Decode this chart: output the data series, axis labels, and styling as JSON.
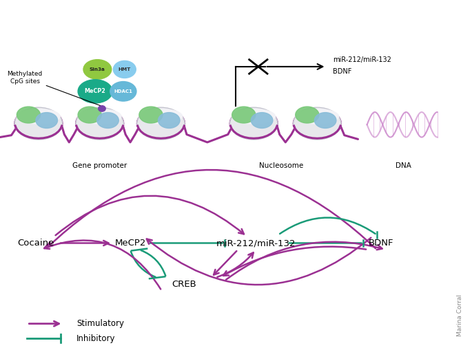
{
  "fig_width": 6.85,
  "fig_height": 5.09,
  "dpi": 100,
  "bg_color": "#ffffff",
  "purple": "#9B3092",
  "teal": "#1A9B78",
  "black": "#111111",
  "gray": "#888888",
  "legend_stimulatory": "Stimulatory",
  "legend_inhibitory": "Inhibitory",
  "credit": "Marina Corral"
}
